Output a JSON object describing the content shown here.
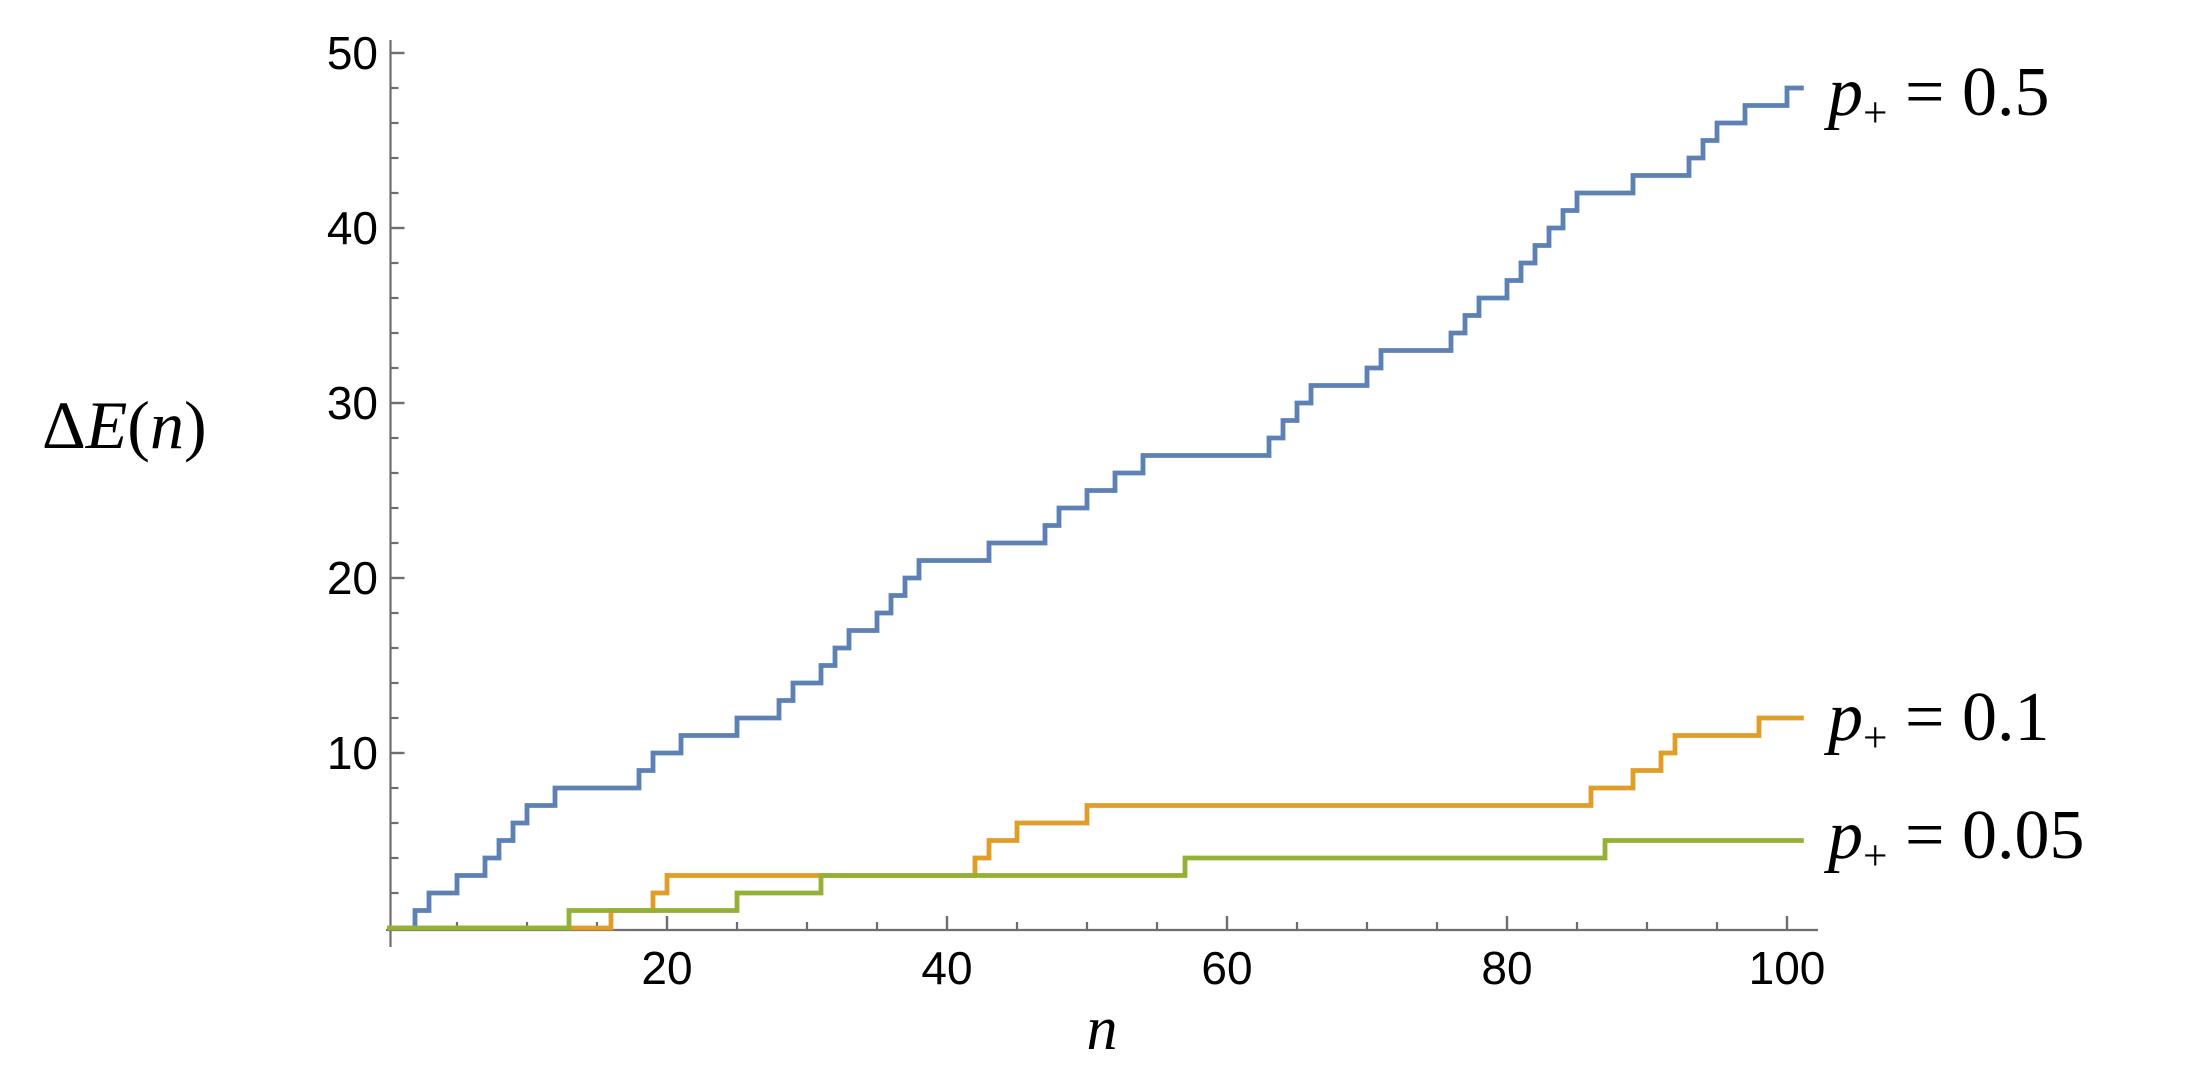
{
  "figure": {
    "background": "#ffffff"
  },
  "chart_data": {
    "type": "line",
    "subtype": "step-staircase",
    "title": "",
    "xlabel": "n",
    "ylabel": "ΔE(n)",
    "ylabel_parts": {
      "delta": "Δ",
      "E": "E",
      "open": "(",
      "var": "n",
      "close": ")"
    },
    "xlim": [
      0,
      101.2
    ],
    "ylim": [
      0,
      50
    ],
    "grid": false,
    "legend_position": "right-of-line-ends",
    "axis_color": "#6e6e6e",
    "tick_label_color": "#000000",
    "x_major_ticks": [
      20,
      40,
      60,
      80,
      100
    ],
    "x_minor_ticks": [
      5,
      10,
      15,
      25,
      30,
      35,
      45,
      50,
      55,
      65,
      70,
      75,
      85,
      90,
      95
    ],
    "y_major_ticks": [
      10,
      20,
      30,
      40,
      50
    ],
    "y_minor_ticks": [
      2,
      4,
      6,
      8,
      12,
      14,
      16,
      18,
      22,
      24,
      26,
      28,
      32,
      34,
      36,
      38,
      42,
      44,
      46,
      48
    ],
    "series": [
      {
        "name": "p-plus-0.5",
        "label": "p+ = 0.5",
        "color": "#5e81b5",
        "start": [
          0,
          0
        ],
        "end_n": 101.2,
        "final_value": 48,
        "jumps": [
          [
            2,
            1
          ],
          [
            3,
            2
          ],
          [
            5,
            3
          ],
          [
            7,
            4
          ],
          [
            8,
            5
          ],
          [
            9,
            6
          ],
          [
            10,
            7
          ],
          [
            12,
            8
          ],
          [
            18,
            9
          ],
          [
            19,
            10
          ],
          [
            21,
            11
          ],
          [
            25,
            12
          ],
          [
            28,
            13
          ],
          [
            29,
            14
          ],
          [
            31,
            15
          ],
          [
            32,
            16
          ],
          [
            33,
            17
          ],
          [
            35,
            18
          ],
          [
            36,
            19
          ],
          [
            37,
            20
          ],
          [
            38,
            21
          ],
          [
            43,
            22
          ],
          [
            47,
            23
          ],
          [
            48,
            24
          ],
          [
            50,
            25
          ],
          [
            52,
            26
          ],
          [
            54,
            27
          ],
          [
            63,
            28
          ],
          [
            64,
            29
          ],
          [
            65,
            30
          ],
          [
            66,
            31
          ],
          [
            70,
            32
          ],
          [
            71,
            33
          ],
          [
            76,
            34
          ],
          [
            77,
            35
          ],
          [
            78,
            36
          ],
          [
            80,
            37
          ],
          [
            81,
            38
          ],
          [
            82,
            39
          ],
          [
            83,
            40
          ],
          [
            84,
            41
          ],
          [
            85,
            42
          ],
          [
            89,
            43
          ],
          [
            93,
            44
          ],
          [
            94,
            45
          ],
          [
            95,
            46
          ],
          [
            97,
            47
          ],
          [
            100,
            48
          ]
        ],
        "legend": {
          "p": "p",
          "sub": "+",
          "rest": " = 0.5"
        }
      },
      {
        "name": "p-plus-0.1",
        "label": "p+ = 0.1",
        "color": "#e09d28",
        "start": [
          0,
          0
        ],
        "end_n": 101.2,
        "final_value": 12,
        "jumps": [
          [
            16,
            1
          ],
          [
            19,
            2
          ],
          [
            20,
            3
          ],
          [
            42,
            4
          ],
          [
            43,
            5
          ],
          [
            45,
            6
          ],
          [
            50,
            7
          ],
          [
            86,
            8
          ],
          [
            89,
            9
          ],
          [
            91,
            10
          ],
          [
            92,
            11
          ],
          [
            98,
            12
          ]
        ],
        "legend": {
          "p": "p",
          "sub": "+",
          "rest": " = 0.1"
        }
      },
      {
        "name": "p-plus-0.05",
        "label": "p+ = 0.05",
        "color": "#93b135",
        "start": [
          0,
          0
        ],
        "end_n": 101.2,
        "final_value": 5,
        "jumps": [
          [
            13,
            1
          ],
          [
            25,
            2
          ],
          [
            31,
            3
          ],
          [
            57,
            4
          ],
          [
            87,
            5
          ]
        ],
        "legend": {
          "p": "p",
          "sub": "+",
          "rest": " = 0.05"
        }
      }
    ]
  }
}
